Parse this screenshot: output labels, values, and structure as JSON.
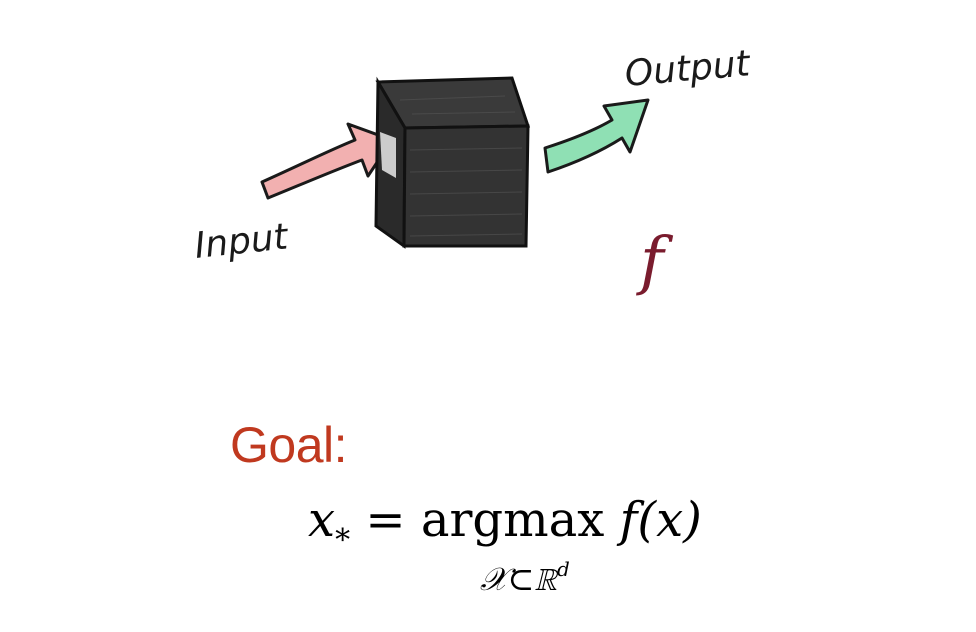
{
  "diagram": {
    "input_label": "Input",
    "output_label": "Output",
    "function_symbol": "f",
    "colors": {
      "input_arrow": "#f2a3a3",
      "output_arrow": "#7fd9a6",
      "box": "#2b2b2b",
      "function_symbol": "#7a1c2e"
    },
    "icons": [
      "black-box-cube",
      "input-arrow",
      "output-arrow"
    ]
  },
  "goal": {
    "label": "Goal:",
    "color": "#c0391f",
    "formula": {
      "lhs": "x",
      "lhs_sub": "*",
      "equals": "=",
      "operator": "argmax",
      "func": "f(x)",
      "under_set": "𝒳⊂ℝ",
      "under_sup": "d"
    }
  }
}
